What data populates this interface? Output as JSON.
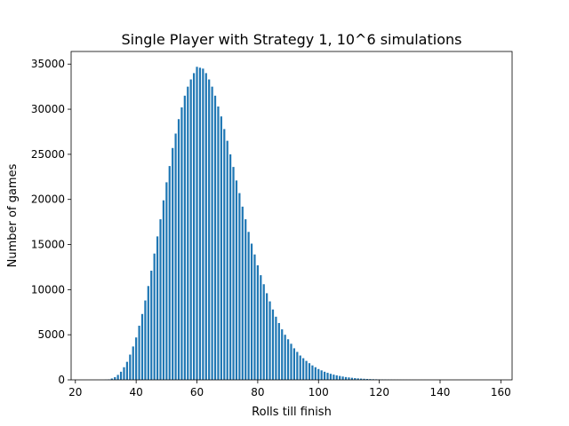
{
  "chart_data": {
    "type": "bar",
    "title": "Single Player with Strategy 1, 10^6 simulations",
    "x_label": "Rolls till finish",
    "y_label": "Number of games",
    "color": "#1f77b4",
    "x": [
      30,
      31,
      32,
      33,
      34,
      35,
      36,
      37,
      38,
      39,
      40,
      41,
      42,
      43,
      44,
      45,
      46,
      47,
      48,
      49,
      50,
      51,
      52,
      53,
      54,
      55,
      56,
      57,
      58,
      59,
      60,
      61,
      62,
      63,
      64,
      65,
      66,
      67,
      68,
      69,
      70,
      71,
      72,
      73,
      74,
      75,
      76,
      77,
      78,
      79,
      80,
      81,
      82,
      83,
      84,
      85,
      86,
      87,
      88,
      89,
      90,
      91,
      92,
      93,
      94,
      95,
      96,
      97,
      98,
      99,
      100,
      101,
      102,
      103,
      104,
      105,
      106,
      107,
      108,
      109,
      110,
      111,
      112,
      113,
      114,
      115,
      116,
      117,
      118,
      119,
      120,
      121,
      122,
      123,
      124,
      125,
      126,
      127,
      128,
      129,
      130,
      131,
      132,
      133,
      134,
      135,
      136,
      137,
      138,
      139,
      140
    ],
    "values": [
      20,
      50,
      150,
      300,
      550,
      900,
      1400,
      2000,
      2800,
      3700,
      4700,
      6000,
      7300,
      8800,
      10400,
      12100,
      14000,
      15900,
      17800,
      19900,
      21900,
      23700,
      25700,
      27300,
      28900,
      30200,
      31500,
      32500,
      33300,
      34000,
      34700,
      34600,
      34500,
      34000,
      33300,
      32500,
      31500,
      30300,
      29200,
      27800,
      26500,
      25000,
      23600,
      22100,
      20700,
      19200,
      17800,
      16400,
      15100,
      13900,
      12700,
      11600,
      10600,
      9600,
      8700,
      7800,
      7000,
      6300,
      5600,
      5000,
      4500,
      4000,
      3500,
      3100,
      2700,
      2400,
      2100,
      1850,
      1600,
      1400,
      1200,
      1050,
      900,
      780,
      670,
      580,
      500,
      430,
      370,
      310,
      270,
      230,
      195,
      165,
      140,
      120,
      100,
      85,
      70,
      60,
      50,
      42,
      35,
      29,
      24,
      20,
      16,
      13,
      11,
      9,
      7,
      6,
      5,
      4,
      3,
      3,
      2,
      2,
      1,
      1,
      1
    ],
    "xlim": [
      18.6,
      163.7
    ],
    "xticks": [
      20,
      40,
      60,
      80,
      100,
      120,
      140,
      160
    ],
    "ylim": [
      0,
      36400
    ],
    "yticks": [
      0,
      5000,
      10000,
      15000,
      20000,
      25000,
      30000,
      35000
    ]
  }
}
